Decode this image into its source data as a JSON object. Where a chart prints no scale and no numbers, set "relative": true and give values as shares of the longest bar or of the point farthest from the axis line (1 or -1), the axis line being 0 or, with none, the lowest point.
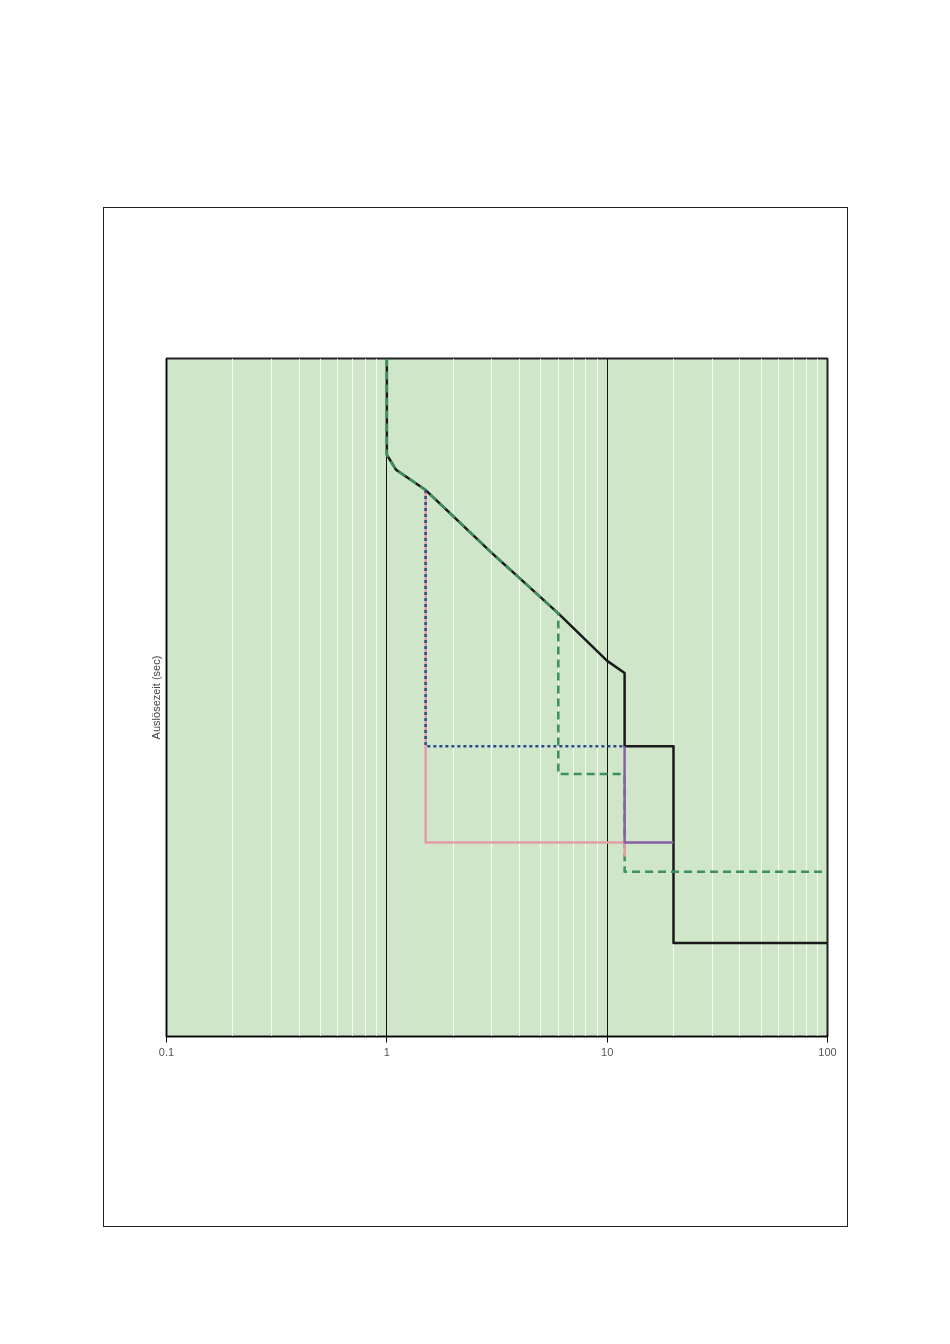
{
  "chart_data": {
    "type": "line",
    "ylabel": "Auslösezeit (sec)",
    "relative": true,
    "log": "x",
    "xlim": [
      0.1,
      100
    ],
    "xticks": [
      0.1,
      1,
      10,
      100
    ],
    "grid": "x",
    "series": [
      {
        "color": "#1a1a1a",
        "line_style": "solid",
        "x": [
          1,
          1,
          1.1,
          1.5,
          3,
          6,
          10,
          12,
          12,
          20,
          20,
          100
        ],
        "values": [
          1,
          0.858,
          0.836,
          0.806,
          0.713,
          0.624,
          0.554,
          0.536,
          0.428,
          0.428,
          0.138,
          0.138
        ]
      },
      {
        "color": "#3d8f5e",
        "line_style": "dashed",
        "x": [
          1,
          1,
          1.1,
          1.5,
          3,
          6,
          6,
          12,
          12,
          100
        ],
        "values": [
          1,
          0.858,
          0.836,
          0.806,
          0.713,
          0.624,
          0.387,
          0.387,
          0.243,
          0.243
        ]
      },
      {
        "color": "#e89aa8",
        "line_style": "solid",
        "x": [
          1.5,
          1.5,
          12,
          12
        ],
        "values": [
          0.806,
          0.286,
          0.286,
          0.265
        ]
      },
      {
        "color": "#2b4a8f",
        "line_style": "dotted",
        "x": [
          1.5,
          1.5,
          12
        ],
        "values": [
          0.806,
          0.428,
          0.428
        ]
      },
      {
        "color": "#8a5fa8",
        "line_style": "solid",
        "x": [
          12,
          12,
          20
        ],
        "values": [
          0.428,
          0.286,
          0.286
        ]
      }
    ]
  }
}
